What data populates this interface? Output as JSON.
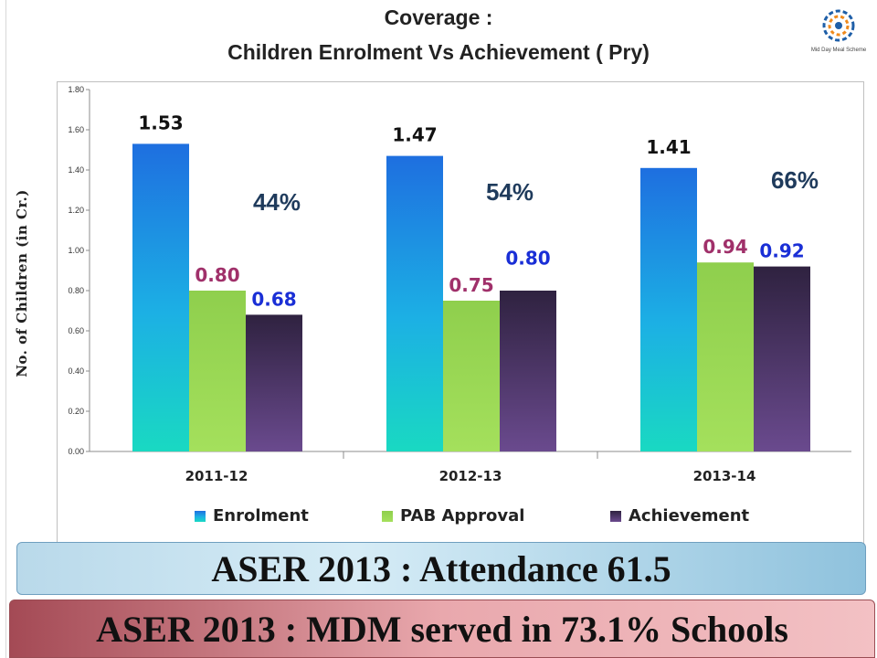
{
  "header": {
    "title_line1": "Coverage :",
    "title_line2": "Children   Enrolment Vs  Achievement ( Pry)",
    "logo_icon": "mid-day-meal-logo-icon",
    "logo_caption": "Mid Day Meal Scheme"
  },
  "chart_data": {
    "type": "bar",
    "categories": [
      "2011-12",
      "2012-13",
      "2013-14"
    ],
    "series": [
      {
        "name": "Enrolment",
        "values": [
          1.53,
          1.47,
          1.41
        ],
        "labels": [
          "1.53",
          "1.47",
          "1.41"
        ],
        "color": "#1e88e5",
        "label_color": "#111111"
      },
      {
        "name": "PAB Approval",
        "values": [
          0.8,
          0.75,
          0.94
        ],
        "labels": [
          "0.80",
          "0.75",
          "0.94"
        ],
        "color": "#92d050",
        "label_color": "#a0306a"
      },
      {
        "name": "Achievement",
        "values": [
          0.68,
          0.8,
          0.92
        ],
        "labels": [
          "0.68",
          "0.80",
          "0.92"
        ],
        "color": "#3f2b57",
        "label_color": "#1a2fd6"
      }
    ],
    "annotations": [
      "44%",
      "54%",
      "66%"
    ],
    "ylabel": "No. of Children (in Cr.)",
    "ylim": [
      0,
      1.8
    ],
    "yticks": [
      "0.00",
      "0.20",
      "0.40",
      "0.60",
      "0.80",
      "1.00",
      "1.20",
      "1.40",
      "1.60",
      "1.80"
    ],
    "grid": false,
    "legend_position": "bottom"
  },
  "banners": {
    "attendance": "ASER 2013 : Attendance 61.5",
    "mdm": "ASER 2013 : MDM served in 73.1% Schools"
  }
}
